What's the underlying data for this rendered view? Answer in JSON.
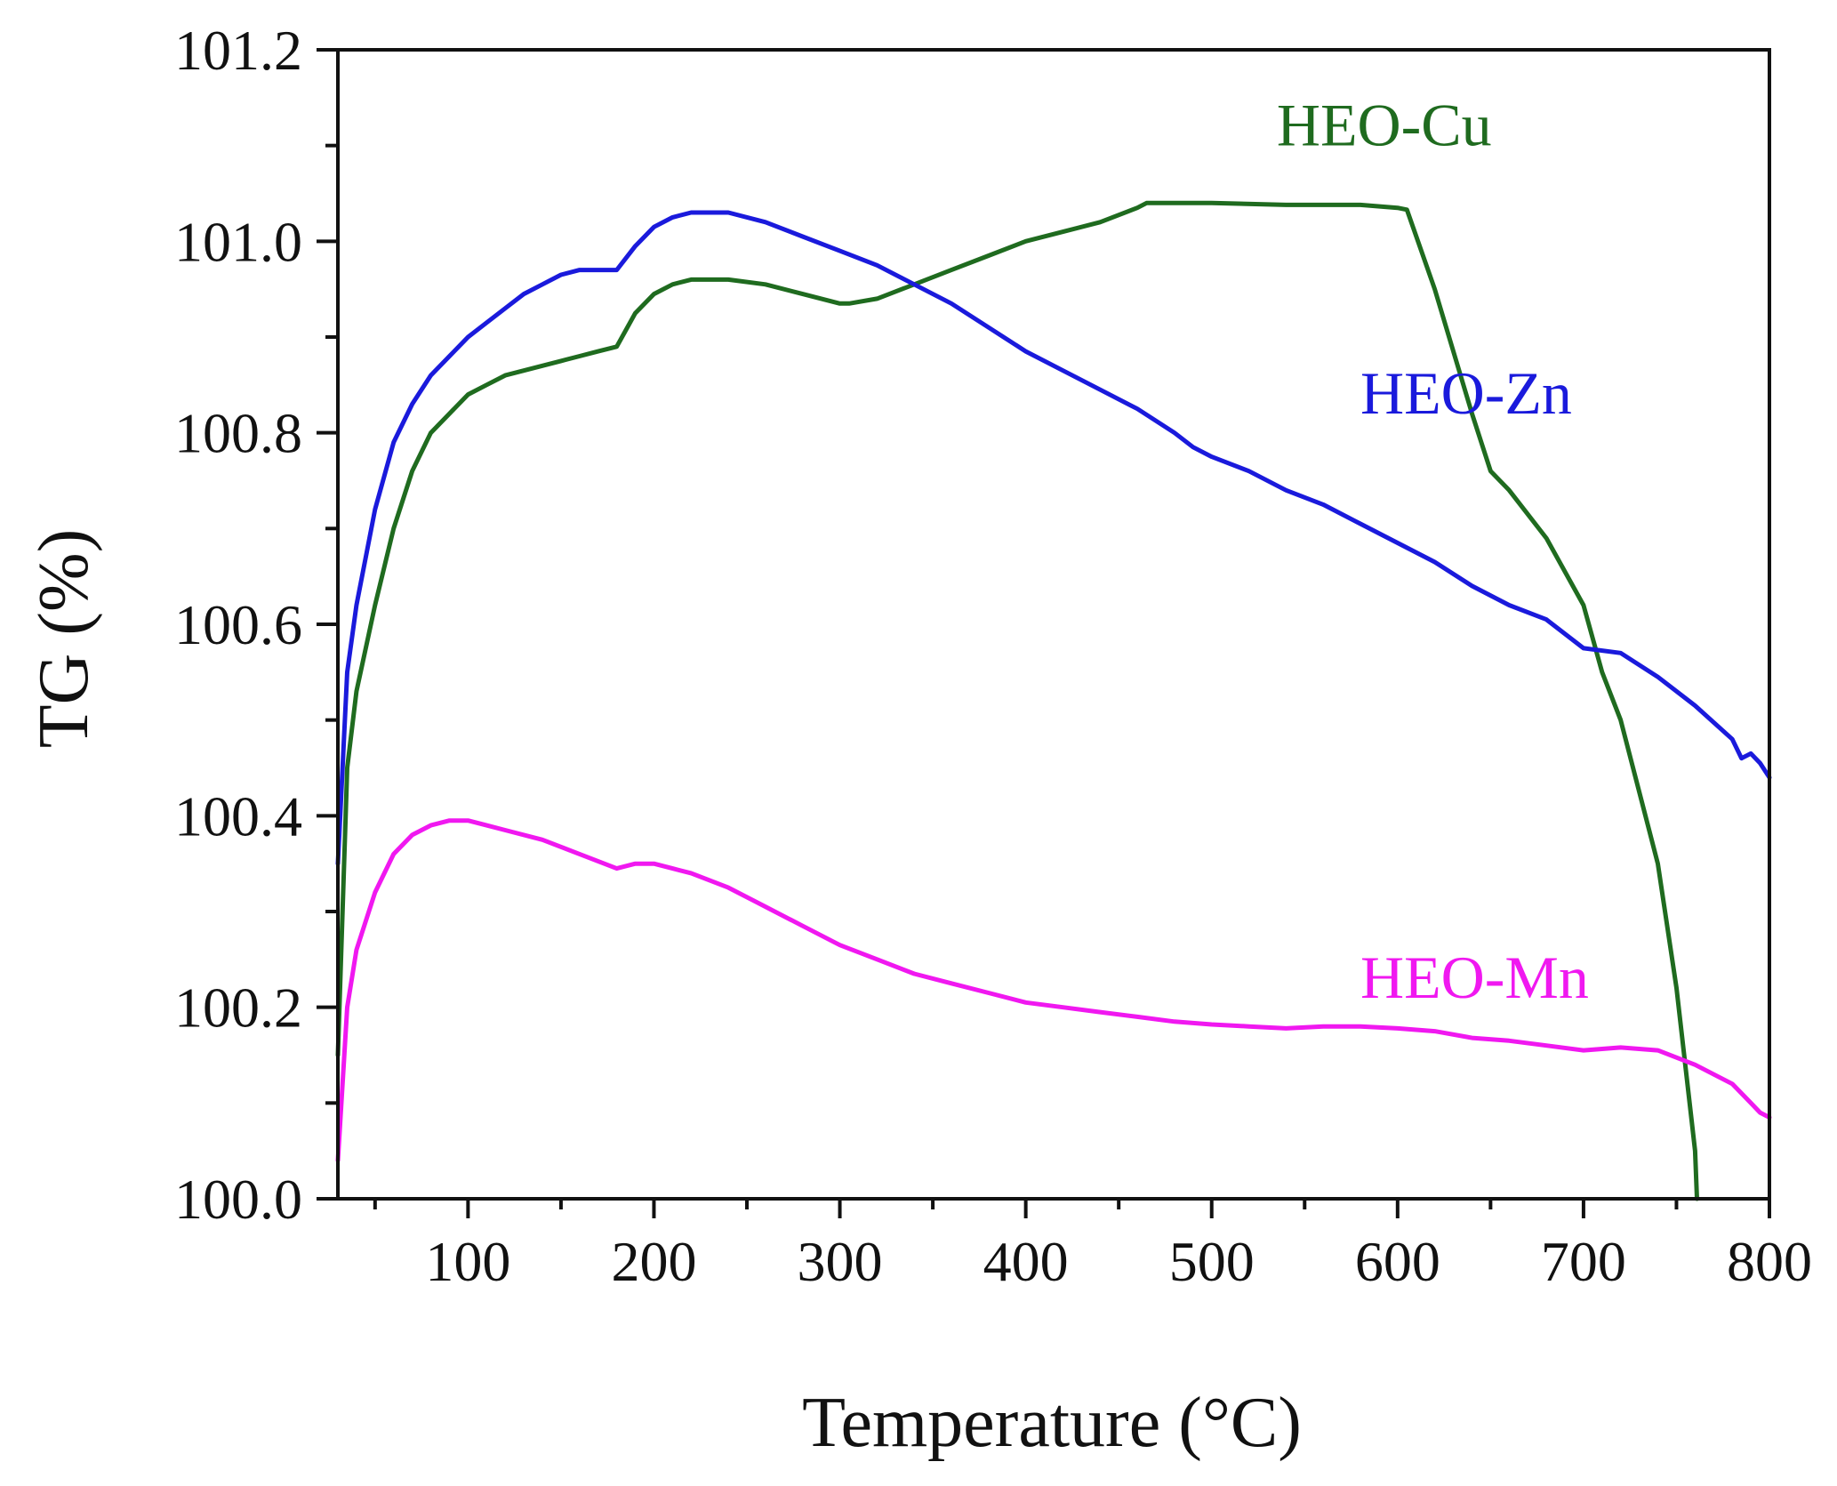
{
  "chart_data": {
    "type": "line",
    "title": "",
    "xlabel": "Temperature (°C)",
    "ylabel": "TG (%)",
    "xlim": [
      30,
      800
    ],
    "ylim": [
      100.0,
      101.2
    ],
    "x_ticks": [
      100,
      200,
      300,
      400,
      500,
      600,
      700,
      800
    ],
    "x_tick_labels": [
      "100",
      "200",
      "300",
      "400",
      "500",
      "600",
      "700",
      "800"
    ],
    "y_ticks": [
      100.0,
      100.2,
      100.4,
      100.6,
      100.8,
      101.0,
      101.2
    ],
    "y_tick_labels": [
      "100.0",
      "100.2",
      "100.4",
      "100.6",
      "100.8",
      "101.0",
      "101.2"
    ],
    "grid": false,
    "legend": "inline labels",
    "series": [
      {
        "name": "HEO-Cu",
        "color": "#1f6b1f",
        "label_at": [
          535,
          101.1
        ],
        "x": [
          30,
          35,
          40,
          50,
          60,
          70,
          80,
          90,
          100,
          110,
          120,
          130,
          140,
          150,
          160,
          170,
          180,
          190,
          200,
          210,
          220,
          240,
          260,
          280,
          300,
          305,
          320,
          340,
          360,
          380,
          400,
          420,
          440,
          460,
          465,
          500,
          540,
          580,
          600,
          605,
          620,
          640,
          650,
          660,
          680,
          700,
          710,
          720,
          740,
          750,
          760,
          761
        ],
        "y": [
          100.15,
          100.45,
          100.53,
          100.62,
          100.7,
          100.76,
          100.8,
          100.82,
          100.84,
          100.85,
          100.86,
          100.865,
          100.87,
          100.875,
          100.88,
          100.885,
          100.89,
          100.925,
          100.945,
          100.955,
          100.96,
          100.96,
          100.955,
          100.945,
          100.935,
          100.935,
          100.94,
          100.955,
          100.97,
          100.985,
          101.0,
          101.01,
          101.02,
          101.035,
          101.04,
          101.04,
          101.038,
          101.038,
          101.035,
          101.033,
          100.95,
          100.82,
          100.76,
          100.74,
          100.69,
          100.62,
          100.55,
          100.5,
          100.35,
          100.22,
          100.05,
          100.0
        ]
      },
      {
        "name": "HEO-Zn",
        "color": "#1a1adc",
        "label_at": [
          580,
          100.82
        ],
        "x": [
          30,
          35,
          40,
          50,
          60,
          70,
          80,
          90,
          100,
          110,
          120,
          130,
          140,
          150,
          160,
          170,
          180,
          190,
          200,
          210,
          220,
          230,
          240,
          260,
          280,
          300,
          320,
          340,
          360,
          380,
          400,
          420,
          440,
          460,
          480,
          490,
          500,
          520,
          540,
          560,
          580,
          600,
          620,
          640,
          660,
          680,
          700,
          720,
          740,
          760,
          780,
          785,
          790,
          795,
          800
        ],
        "y": [
          100.35,
          100.55,
          100.62,
          100.72,
          100.79,
          100.83,
          100.86,
          100.88,
          100.9,
          100.915,
          100.93,
          100.945,
          100.955,
          100.965,
          100.97,
          100.97,
          100.97,
          100.995,
          101.015,
          101.025,
          101.03,
          101.03,
          101.03,
          101.02,
          101.005,
          100.99,
          100.975,
          100.955,
          100.935,
          100.91,
          100.885,
          100.865,
          100.845,
          100.825,
          100.8,
          100.785,
          100.775,
          100.76,
          100.74,
          100.725,
          100.705,
          100.685,
          100.665,
          100.64,
          100.62,
          100.605,
          100.575,
          100.57,
          100.545,
          100.515,
          100.48,
          100.46,
          100.465,
          100.455,
          100.44
        ]
      },
      {
        "name": "HEO-Mn",
        "color": "#f018f0",
        "label_at": [
          580,
          100.21
        ],
        "x": [
          30,
          35,
          40,
          50,
          60,
          70,
          80,
          90,
          100,
          110,
          120,
          140,
          160,
          180,
          190,
          200,
          210,
          220,
          240,
          260,
          280,
          300,
          320,
          340,
          360,
          380,
          400,
          420,
          440,
          460,
          480,
          500,
          520,
          540,
          560,
          580,
          600,
          620,
          640,
          660,
          680,
          700,
          720,
          740,
          760,
          780,
          790,
          795,
          800
        ],
        "y": [
          100.04,
          100.2,
          100.26,
          100.32,
          100.36,
          100.38,
          100.39,
          100.395,
          100.395,
          100.39,
          100.385,
          100.375,
          100.36,
          100.345,
          100.35,
          100.35,
          100.345,
          100.34,
          100.325,
          100.305,
          100.285,
          100.265,
          100.25,
          100.235,
          100.225,
          100.215,
          100.205,
          100.2,
          100.195,
          100.19,
          100.185,
          100.182,
          100.18,
          100.178,
          100.18,
          100.18,
          100.178,
          100.175,
          100.168,
          100.165,
          100.16,
          100.155,
          100.158,
          100.155,
          100.14,
          100.12,
          100.1,
          100.09,
          100.085
        ]
      }
    ]
  }
}
